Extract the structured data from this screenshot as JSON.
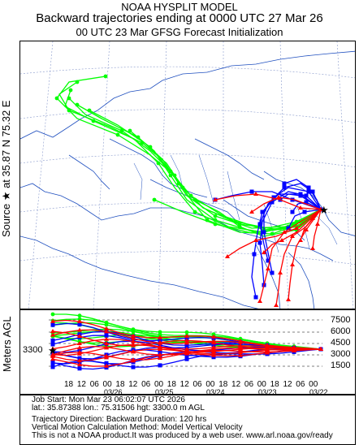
{
  "header": {
    "line1": "NOAA HYSPLIT MODEL",
    "line2": "Backward trajectories ending at 0000 UTC 27 Mar 26",
    "line3": "00 UTC 23 Mar    GFSG  Forecast Initialization"
  },
  "side": {
    "source": "Source ★ at   35.87 N   75.32 E",
    "meters": "Meters AGL"
  },
  "start_height": "3300",
  "vertical_axis": [
    "7500",
    "6000",
    "4500",
    "3000",
    "1500"
  ],
  "time_ticks": [
    "18",
    "12",
    "06",
    "00",
    "18",
    "12",
    "06",
    "00",
    "18",
    "12",
    "06",
    "00",
    "18",
    "12",
    "06",
    "00",
    "18",
    "12",
    "06",
    "00"
  ],
  "dates": [
    "03/26",
    "03/25",
    "03/24",
    "03/23",
    "03/22"
  ],
  "footer": {
    "job": "Job Start: Mon Mar 23 06:02:07 UTC 2026",
    "location": "lat.: 35.87388   lon.: 75.31506    hgt: 3300.0 m AGL",
    "direction": "Trajectory Direction: Backward       Duration: 120 hrs",
    "vertical": "Vertical Motion Calculation Method: Model Vertical Velocity",
    "disclaimer": "This is not a NOAA product.It was produced by a web user. www.arl.noaa.gov/ready"
  },
  "colors": {
    "red": "#ff0000",
    "blue": "#0000ff",
    "green": "#00ff00",
    "map": "#1f4fbf",
    "grid": "#8899cc"
  },
  "trajectories": {
    "green_count": 9,
    "blue_count": 9,
    "red_count": 9
  }
}
